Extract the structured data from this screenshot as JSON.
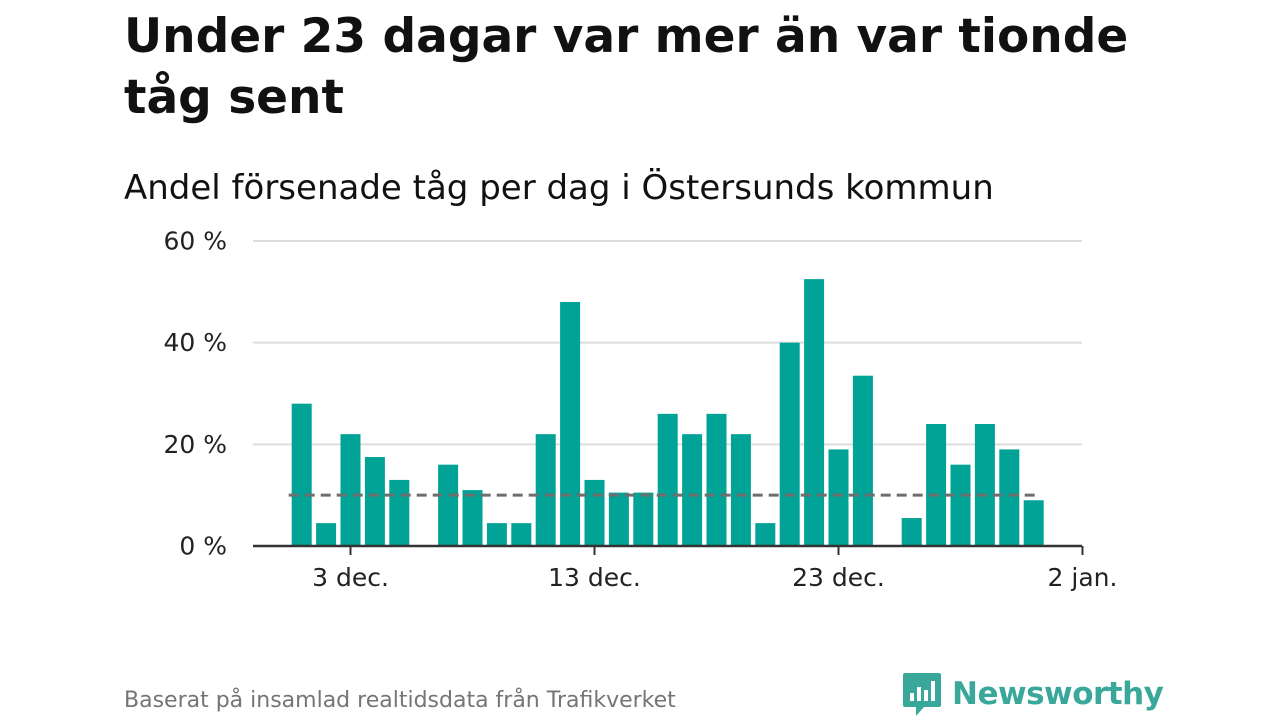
{
  "title": "Under 23 dagar var mer än var tionde tåg sent",
  "subtitle": "Andel försenade tåg per dag i Östersunds kommun",
  "source": "Baserat på insamlad realtidsdata från Trafikverket",
  "brand": {
    "name": "Newsworthy",
    "icon": "newsworthy-logo-icon"
  },
  "colors": {
    "bar": "#00a396",
    "grid": "#dddddd",
    "axis": "#333333",
    "reference": "#6e6e6e",
    "brand": "#3aa79b"
  },
  "chart_data": {
    "type": "bar",
    "xlabel": "",
    "ylabel": "",
    "ylim": [
      0,
      60
    ],
    "yticks": [
      0,
      20,
      40,
      60
    ],
    "ytick_labels": [
      "0 %",
      "20 %",
      "40 %",
      "60 %"
    ],
    "xtick_labels": [
      "3 dec.",
      "13 dec.",
      "23 dec.",
      "2 jan."
    ],
    "xtick_days": [
      3,
      13,
      23,
      33
    ],
    "days": [
      1,
      2,
      3,
      4,
      5,
      6,
      7,
      8,
      9,
      10,
      11,
      12,
      13,
      14,
      15,
      16,
      17,
      18,
      19,
      20,
      21,
      22,
      23,
      24,
      25,
      26,
      27,
      28,
      29,
      30,
      31,
      32
    ],
    "values": [
      28,
      4.5,
      22,
      17.5,
      13,
      null,
      16,
      11,
      4.5,
      4.5,
      22,
      48,
      13,
      10.5,
      10.5,
      26,
      22,
      26,
      22,
      4.5,
      40,
      52.5,
      19,
      33.5,
      null,
      5.5,
      24,
      16,
      24,
      19,
      9,
      null
    ],
    "reference_line": {
      "value": 10,
      "style": "dashed"
    },
    "grid": true
  }
}
